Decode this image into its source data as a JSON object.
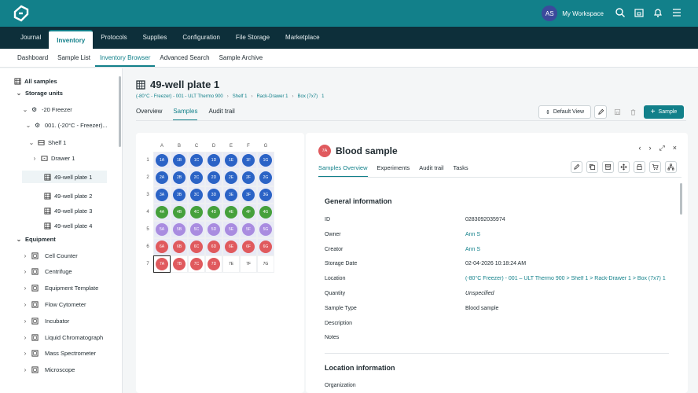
{
  "workspace": {
    "avatar": "AS",
    "name": "My Workspace"
  },
  "nav": [
    "Journal",
    "Inventory",
    "Protocols",
    "Supplies",
    "Configuration",
    "File Storage",
    "Marketplace"
  ],
  "subnav": [
    "Dashboard",
    "Sample List",
    "Inventory Browser",
    "Advanced Search",
    "Sample Archive"
  ],
  "sidebar": {
    "all": "All samples",
    "storage": "Storage units",
    "freezer": "-20 Freezer",
    "rack": "001. (-20°C - Freezer)...",
    "shelf": "Shelf 1",
    "drawer": "Drawer 1",
    "plates": [
      "49-well plate 1",
      "49-well plate 2",
      "49-well plate 3",
      "49-well plate 4"
    ],
    "equipment": "Equipment",
    "eq_items": [
      "Cell Counter",
      "Centrifuge",
      "Equipment Template",
      "Flow Cytometer",
      "Incubator",
      "Liquid Chromatograph",
      "Mass Spectrometer",
      "Microscope"
    ]
  },
  "page": {
    "title": "49-well plate 1",
    "breadcrumb": [
      "(-80°C - Freezer) - 001 - ULT Thermo 900",
      "Shelf 1",
      "Rack-Drawer 1",
      "Box (7x7)",
      "1"
    ],
    "tabs": [
      "Overview",
      "Samples",
      "Audit trail"
    ],
    "default_view": "Default View",
    "add_sample": "Sample"
  },
  "plate": {
    "cols": [
      "A",
      "B",
      "C",
      "D",
      "E",
      "F",
      "G"
    ],
    "rows": [
      "1",
      "2",
      "3",
      "4",
      "5",
      "6",
      "7"
    ],
    "colors": {
      "blue": "#2b63c6",
      "green": "#45a03c",
      "purple": "#a98ce0",
      "red": "#e05a5e"
    },
    "row_colors": [
      "blue",
      "blue",
      "blue",
      "green",
      "purple",
      "red",
      "red"
    ],
    "filled_in_last_row": 4
  },
  "detail": {
    "badge": "7A",
    "title": "Blood sample",
    "tabs": [
      "Samples Overview",
      "Experiments",
      "Audit trail",
      "Tasks"
    ],
    "general": "General information",
    "fields": [
      {
        "label": "ID",
        "value": "0283092035974",
        "kind": ""
      },
      {
        "label": "Owner",
        "value": "Ann S",
        "kind": "link"
      },
      {
        "label": "Creator",
        "value": "Ann S",
        "kind": "link"
      },
      {
        "label": "Storage Date",
        "value": "02-04-2026 10:18:24 AM",
        "kind": ""
      },
      {
        "label": "Location",
        "value": "(-80°C Freezer) - 001 – ULT Thermo 900 > Shelf 1 > Rack-Drawer 1 > Box (7x7) 1",
        "kind": "link"
      },
      {
        "label": "Quantity",
        "value": "Unspecified",
        "kind": "it"
      },
      {
        "label": "Sample Type",
        "value": "Blood sample",
        "kind": ""
      },
      {
        "label": "Description",
        "value": "",
        "kind": ""
      },
      {
        "label": "Notes",
        "value": "",
        "kind": ""
      }
    ],
    "location": "Location information",
    "org_label": "Organization"
  }
}
